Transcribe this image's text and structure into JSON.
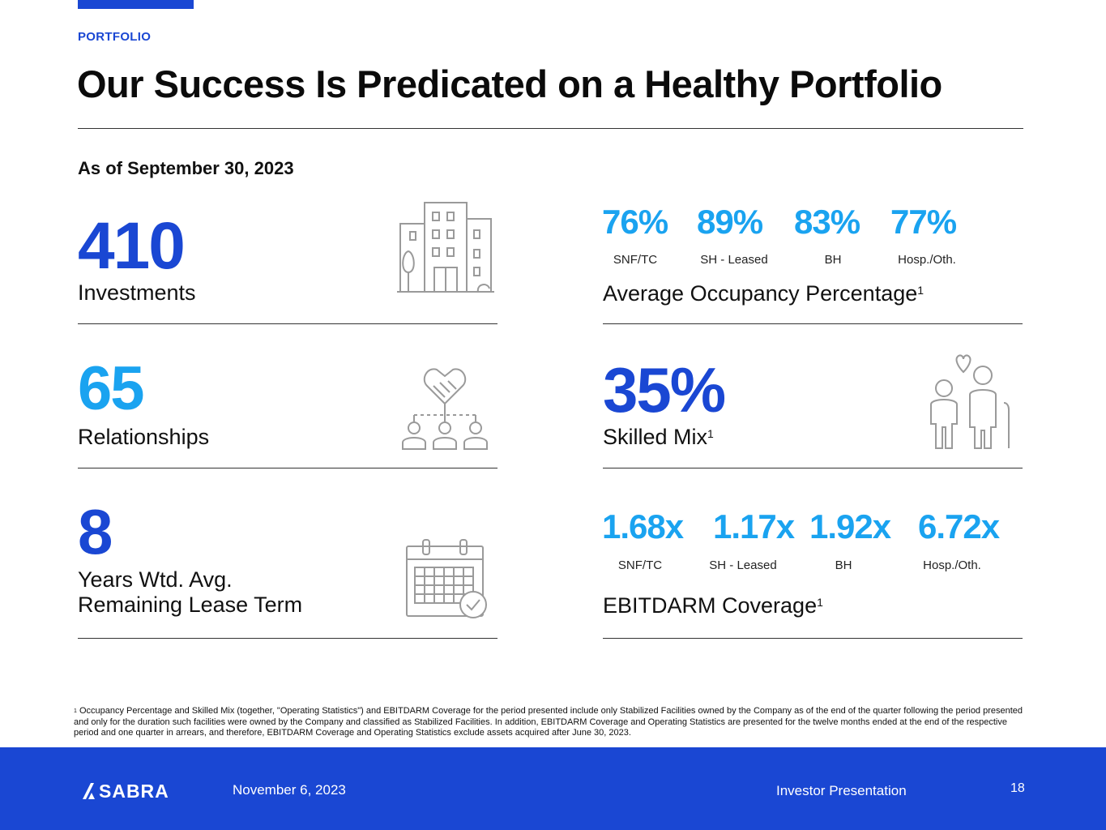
{
  "header": {
    "eyebrow": "PORTFOLIO",
    "title": "Our Success Is Predicated on a Healthy Portfolio",
    "as_of": "As of September 30, 2023"
  },
  "left_stats": {
    "investments": {
      "value": "410",
      "label": "Investments",
      "icon": "buildings-icon"
    },
    "relationships": {
      "value": "65",
      "label": "Relationships",
      "icon": "handshake-network-icon"
    },
    "lease_term": {
      "value": "8",
      "label_line1": "Years Wtd. Avg.",
      "label_line2": "Remaining Lease Term",
      "icon": "calendar-check-icon"
    }
  },
  "occupancy": {
    "items": [
      {
        "value": "76%",
        "label": "SNF/TC"
      },
      {
        "value": "89%",
        "label": "SH - Leased"
      },
      {
        "value": "83%",
        "label": "BH"
      },
      {
        "value": "77%",
        "label": "Hosp./Oth."
      }
    ],
    "caption": "Average Occupancy Percentage",
    "footnote_ref": "1"
  },
  "skilled_mix": {
    "value": "35%",
    "label": "Skilled Mix",
    "footnote_ref": "1",
    "icon": "family-icon"
  },
  "coverage": {
    "items": [
      {
        "value": "1.68x",
        "label": "SNF/TC"
      },
      {
        "value": "1.17x",
        "label": "SH - Leased"
      },
      {
        "value": "1.92x",
        "label": "BH"
      },
      {
        "value": "6.72x",
        "label": "Hosp./Oth."
      }
    ],
    "caption": "EBITDARM Coverage",
    "footnote_ref": "1"
  },
  "footnote": {
    "marker": "1",
    "text": "Occupancy Percentage and Skilled Mix (together, \"Operating Statistics\") and EBITDARM Coverage for the period presented include only Stabilized Facilities owned by the Company as of the end of the quarter following the period presented and only for the duration such facilities were owned by the Company and classified as Stabilized Facilities. In addition, EBITDARM Coverage and Operating Statistics are presented for the twelve months ended at the end of the respective period and one quarter in arrears, and therefore, EBITDARM Coverage and Operating Statistics exclude assets acquired after June 30, 2023."
  },
  "footer": {
    "logo_text": "SABRA",
    "date": "November 6, 2023",
    "presentation": "Investor Presentation",
    "page_number": "18"
  },
  "colors": {
    "brand_blue": "#1a47d3",
    "light_blue": "#1aa3f0",
    "icon_gray": "#9a9a9a"
  }
}
